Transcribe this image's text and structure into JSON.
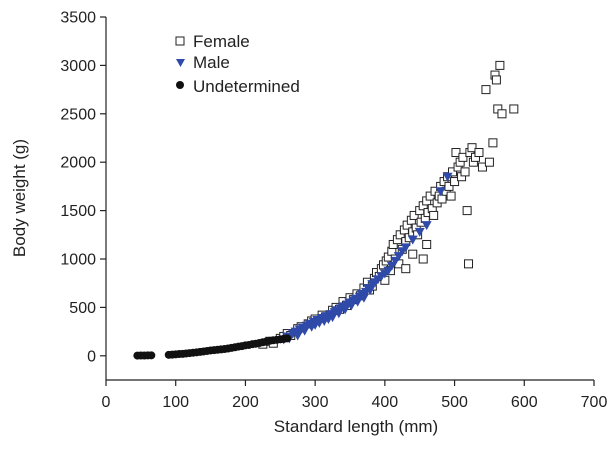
{
  "chart_data": {
    "type": "scatter",
    "xlabel": "Standard length (mm)",
    "ylabel": "Body weight (g)",
    "xlim": [
      0,
      700
    ],
    "ylim": [
      -250,
      3500
    ],
    "x_ticks": [
      "0",
      "100",
      "200",
      "300",
      "400",
      "500",
      "600",
      "700"
    ],
    "y_ticks": [
      "0",
      "500",
      "1000",
      "1500",
      "2000",
      "2500",
      "3000",
      "3500"
    ],
    "grid": false,
    "legend_position": "top-left",
    "colors": {
      "Female": "#222222",
      "Male": "#2f4aa8",
      "Undetermined": "#111111"
    },
    "series": [
      {
        "name": "Female",
        "marker": "open-square",
        "points": [
          [
            225,
            120
          ],
          [
            235,
            150
          ],
          [
            240,
            130
          ],
          [
            250,
            180
          ],
          [
            255,
            200
          ],
          [
            260,
            230
          ],
          [
            265,
            210
          ],
          [
            275,
            280
          ],
          [
            280,
            300
          ],
          [
            290,
            330
          ],
          [
            295,
            360
          ],
          [
            300,
            380
          ],
          [
            310,
            420
          ],
          [
            315,
            400
          ],
          [
            325,
            470
          ],
          [
            330,
            500
          ],
          [
            335,
            480
          ],
          [
            340,
            560
          ],
          [
            345,
            520
          ],
          [
            350,
            600
          ],
          [
            355,
            580
          ],
          [
            360,
            640
          ],
          [
            365,
            620
          ],
          [
            370,
            700
          ],
          [
            375,
            760
          ],
          [
            378,
            680
          ],
          [
            382,
            720
          ],
          [
            385,
            800
          ],
          [
            388,
            860
          ],
          [
            392,
            820
          ],
          [
            395,
            900
          ],
          [
            398,
            940
          ],
          [
            400,
            780
          ],
          [
            402,
            980
          ],
          [
            405,
            1020
          ],
          [
            408,
            880
          ],
          [
            410,
            1080
          ],
          [
            412,
            1150
          ],
          [
            415,
            1000
          ],
          [
            418,
            1200
          ],
          [
            420,
            950
          ],
          [
            422,
            1250
          ],
          [
            425,
            1100
          ],
          [
            428,
            1300
          ],
          [
            430,
            1180
          ],
          [
            432,
            1350
          ],
          [
            435,
            1220
          ],
          [
            438,
            1400
          ],
          [
            440,
            1280
          ],
          [
            442,
            1450
          ],
          [
            445,
            1320
          ],
          [
            447,
            1250
          ],
          [
            450,
            1500
          ],
          [
            452,
            1380
          ],
          [
            455,
            1550
          ],
          [
            458,
            1420
          ],
          [
            460,
            1600
          ],
          [
            462,
            1480
          ],
          [
            465,
            1650
          ],
          [
            468,
            1520
          ],
          [
            470,
            1450
          ],
          [
            472,
            1700
          ],
          [
            475,
            1580
          ],
          [
            478,
            1650
          ],
          [
            480,
            1750
          ],
          [
            482,
            1620
          ],
          [
            485,
            1800
          ],
          [
            488,
            1700
          ],
          [
            490,
            1850
          ],
          [
            492,
            1750
          ],
          [
            495,
            1650
          ],
          [
            497,
            1900
          ],
          [
            500,
            1800
          ],
          [
            502,
            2100
          ],
          [
            505,
            1950
          ],
          [
            508,
            2000
          ],
          [
            510,
            1850
          ],
          [
            512,
            2050
          ],
          [
            515,
            1900
          ],
          [
            518,
            1500
          ],
          [
            520,
            950
          ],
          [
            522,
            2100
          ],
          [
            525,
            2150
          ],
          [
            527,
            2000
          ],
          [
            530,
            2050
          ],
          [
            535,
            2100
          ],
          [
            540,
            1950
          ],
          [
            545,
            2750
          ],
          [
            550,
            2000
          ],
          [
            555,
            2200
          ],
          [
            558,
            2900
          ],
          [
            560,
            2850
          ],
          [
            562,
            2550
          ],
          [
            565,
            3000
          ],
          [
            568,
            2500
          ],
          [
            585,
            2550
          ],
          [
            430,
            900
          ],
          [
            440,
            1050
          ],
          [
            455,
            1000
          ],
          [
            460,
            1150
          ]
        ]
      },
      {
        "name": "Male",
        "marker": "filled-triangle-down",
        "points": [
          [
            255,
            170
          ],
          [
            260,
            200
          ],
          [
            263,
            180
          ],
          [
            268,
            230
          ],
          [
            272,
            250
          ],
          [
            275,
            210
          ],
          [
            278,
            270
          ],
          [
            282,
            290
          ],
          [
            285,
            260
          ],
          [
            288,
            310
          ],
          [
            292,
            330
          ],
          [
            295,
            300
          ],
          [
            298,
            350
          ],
          [
            300,
            320
          ],
          [
            303,
            370
          ],
          [
            306,
            340
          ],
          [
            310,
            390
          ],
          [
            313,
            360
          ],
          [
            316,
            410
          ],
          [
            319,
            380
          ],
          [
            322,
            430
          ],
          [
            325,
            400
          ],
          [
            328,
            450
          ],
          [
            331,
            470
          ],
          [
            334,
            440
          ],
          [
            337,
            490
          ],
          [
            340,
            510
          ],
          [
            343,
            480
          ],
          [
            346,
            530
          ],
          [
            349,
            550
          ],
          [
            352,
            520
          ],
          [
            355,
            570
          ],
          [
            358,
            590
          ],
          [
            361,
            560
          ],
          [
            364,
            610
          ],
          [
            367,
            640
          ],
          [
            370,
            600
          ],
          [
            373,
            660
          ],
          [
            376,
            700
          ],
          [
            379,
            680
          ],
          [
            382,
            740
          ],
          [
            386,
            760
          ],
          [
            390,
            790
          ],
          [
            395,
            820
          ],
          [
            400,
            850
          ],
          [
            405,
            880
          ],
          [
            410,
            930
          ],
          [
            415,
            980
          ],
          [
            420,
            1030
          ],
          [
            425,
            1080
          ],
          [
            430,
            1120
          ],
          [
            440,
            1200
          ],
          [
            450,
            1280
          ],
          [
            460,
            1350
          ],
          [
            480,
            1700
          ],
          [
            490,
            1850
          ]
        ]
      },
      {
        "name": "Undetermined",
        "marker": "filled-circle",
        "points": [
          [
            45,
            2
          ],
          [
            50,
            3
          ],
          [
            55,
            3
          ],
          [
            60,
            4
          ],
          [
            65,
            5
          ],
          [
            90,
            10
          ],
          [
            95,
            12
          ],
          [
            100,
            15
          ],
          [
            105,
            18
          ],
          [
            110,
            20
          ],
          [
            115,
            24
          ],
          [
            120,
            28
          ],
          [
            125,
            32
          ],
          [
            130,
            36
          ],
          [
            135,
            40
          ],
          [
            140,
            45
          ],
          [
            145,
            50
          ],
          [
            150,
            55
          ],
          [
            155,
            58
          ],
          [
            160,
            62
          ],
          [
            165,
            66
          ],
          [
            170,
            70
          ],
          [
            175,
            75
          ],
          [
            180,
            82
          ],
          [
            185,
            88
          ],
          [
            190,
            95
          ],
          [
            195,
            100
          ],
          [
            200,
            108
          ],
          [
            205,
            112
          ],
          [
            210,
            120
          ],
          [
            215,
            125
          ],
          [
            220,
            132
          ],
          [
            225,
            140
          ],
          [
            230,
            148
          ],
          [
            235,
            155
          ],
          [
            240,
            160
          ],
          [
            245,
            165
          ],
          [
            250,
            170
          ],
          [
            255,
            175
          ],
          [
            260,
            180
          ]
        ]
      }
    ]
  }
}
